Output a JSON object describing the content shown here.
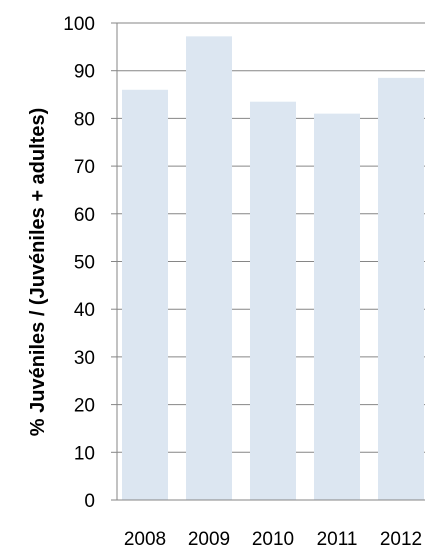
{
  "chart_data": {
    "type": "bar",
    "title": "",
    "xlabel": "",
    "ylabel": "% Juvéniles / (Juvéniles + adultes)",
    "categories": [
      "2008",
      "2009",
      "2010",
      "2011",
      "2012"
    ],
    "values": [
      86,
      97.2,
      83.5,
      81,
      88.5
    ],
    "ylim": [
      0,
      100
    ],
    "yticks": [
      "0",
      "10",
      "20",
      "30",
      "40",
      "50",
      "60",
      "70",
      "80",
      "90",
      "100"
    ],
    "grid": true,
    "legend": "none",
    "bar_color": "#dce6f1",
    "axis_color": "#868686"
  }
}
